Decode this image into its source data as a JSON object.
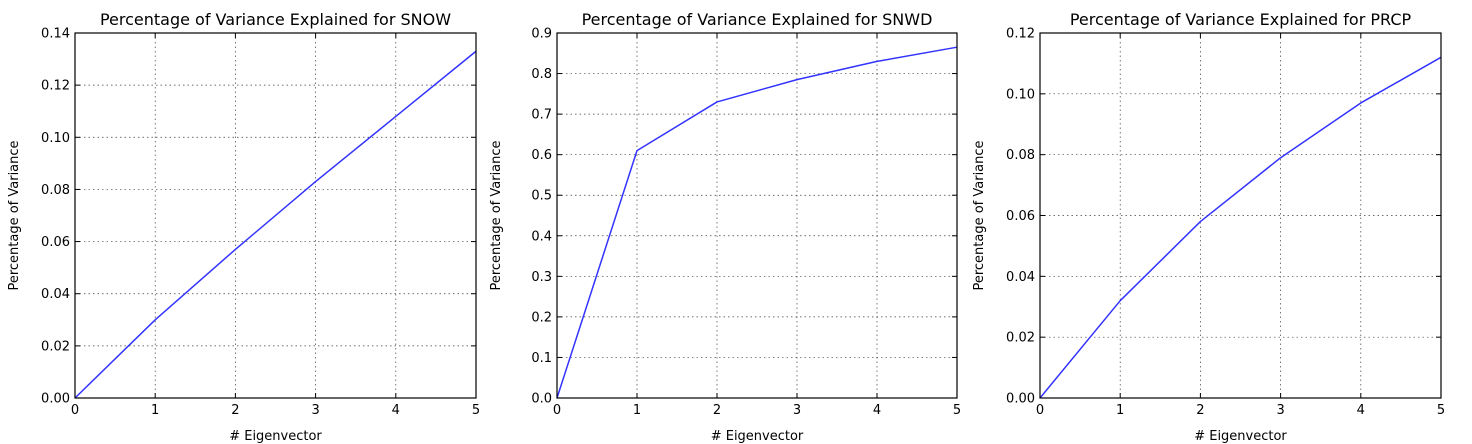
{
  "figure": {
    "chart_data": [
      {
        "type": "line",
        "title": "Percentage of Variance Explained for SNOW",
        "xlabel": "# Eigenvector",
        "ylabel": "Percentage of Variance",
        "xlim": [
          0,
          5
        ],
        "ylim": [
          0,
          0.14
        ],
        "xticks": [
          "0",
          "1",
          "2",
          "3",
          "4",
          "5"
        ],
        "yticks": [
          "0.00",
          "0.02",
          "0.04",
          "0.06",
          "0.08",
          "0.10",
          "0.12",
          "0.14"
        ],
        "grid": true,
        "series": [
          {
            "color": "#3333ff",
            "x": [
              0,
              1,
              2,
              3,
              4,
              5
            ],
            "y": [
              0.0,
              0.03,
              0.057,
              0.083,
              0.108,
              0.133
            ]
          }
        ]
      },
      {
        "type": "line",
        "title": "Percentage of Variance Explained for SNWD",
        "xlabel": "# Eigenvector",
        "ylabel": "Percentage of Variance",
        "xlim": [
          0,
          5
        ],
        "ylim": [
          0,
          0.9
        ],
        "xticks": [
          "0",
          "1",
          "2",
          "3",
          "4",
          "5"
        ],
        "yticks": [
          "0.0",
          "0.1",
          "0.2",
          "0.3",
          "0.4",
          "0.5",
          "0.6",
          "0.7",
          "0.8",
          "0.9"
        ],
        "grid": true,
        "series": [
          {
            "color": "#3333ff",
            "x": [
              0,
              1,
              2,
              3,
              4,
              5
            ],
            "y": [
              0.0,
              0.61,
              0.73,
              0.785,
              0.83,
              0.865
            ]
          }
        ]
      },
      {
        "type": "line",
        "title": "Percentage of Variance Explained for PRCP",
        "xlabel": "# Eigenvector",
        "ylabel": "Percentage of Variance",
        "xlim": [
          0,
          5
        ],
        "ylim": [
          0,
          0.12
        ],
        "xticks": [
          "0",
          "1",
          "2",
          "3",
          "4",
          "5"
        ],
        "yticks": [
          "0.00",
          "0.02",
          "0.04",
          "0.06",
          "0.08",
          "0.10",
          "0.12"
        ],
        "grid": true,
        "series": [
          {
            "color": "#3333ff",
            "x": [
              0,
              1,
              2,
              3,
              4,
              5
            ],
            "y": [
              0.0,
              0.032,
              0.058,
              0.079,
              0.097,
              0.112
            ]
          }
        ]
      }
    ]
  }
}
